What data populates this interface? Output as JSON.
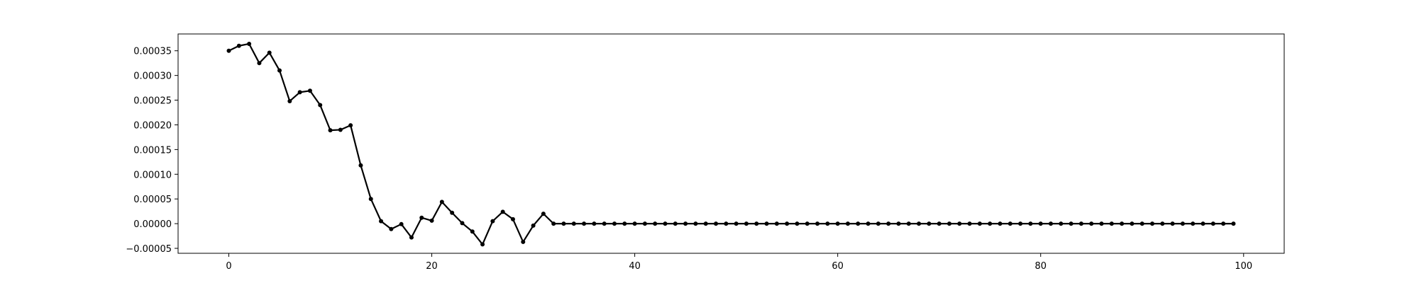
{
  "chart_data": {
    "type": "line",
    "title": "",
    "xlabel": "",
    "ylabel": "",
    "xlim": [
      -5,
      104
    ],
    "ylim": [
      -6e-05,
      0.000384
    ],
    "grid": false,
    "legend": "none",
    "colors": {
      "line": "#000000",
      "marker": "#000000",
      "axes": "#000000",
      "background": "#ffffff"
    },
    "x_ticks": [
      {
        "value": 0,
        "label": "0"
      },
      {
        "value": 20,
        "label": "20"
      },
      {
        "value": 40,
        "label": "40"
      },
      {
        "value": 60,
        "label": "60"
      },
      {
        "value": 80,
        "label": "80"
      },
      {
        "value": 100,
        "label": "100"
      }
    ],
    "y_ticks": [
      {
        "value": -5e-05,
        "label": "−0.00005"
      },
      {
        "value": 0.0,
        "label": "0.00000"
      },
      {
        "value": 5e-05,
        "label": "0.00005"
      },
      {
        "value": 0.0001,
        "label": "0.00010"
      },
      {
        "value": 0.00015,
        "label": "0.00015"
      },
      {
        "value": 0.0002,
        "label": "0.00020"
      },
      {
        "value": 0.00025,
        "label": "0.00025"
      },
      {
        "value": 0.0003,
        "label": "0.00030"
      },
      {
        "value": 0.00035,
        "label": "0.00035"
      }
    ],
    "series": [
      {
        "x": [
          0,
          1,
          2,
          3,
          4,
          5,
          6,
          7,
          8,
          9,
          10,
          11,
          12,
          13,
          14,
          15,
          16,
          17,
          18,
          19,
          20,
          21,
          22,
          23,
          24,
          25,
          26,
          27,
          28,
          29,
          30,
          31,
          32,
          33,
          34,
          35,
          36,
          37,
          38,
          39,
          40,
          41,
          42,
          43,
          44,
          45,
          46,
          47,
          48,
          49,
          50,
          51,
          52,
          53,
          54,
          55,
          56,
          57,
          58,
          59,
          60,
          61,
          62,
          63,
          64,
          65,
          66,
          67,
          68,
          69,
          70,
          71,
          72,
          73,
          74,
          75,
          76,
          77,
          78,
          79,
          80,
          81,
          82,
          83,
          84,
          85,
          86,
          87,
          88,
          89,
          90,
          91,
          92,
          93,
          94,
          95,
          96,
          97,
          98,
          99
        ],
        "values": [
          0.00035,
          0.00036,
          0.000364,
          0.000325,
          0.000346,
          0.00031,
          0.000248,
          0.000266,
          0.000269,
          0.00024,
          0.000189,
          0.00019,
          0.000199,
          0.000118,
          5e-05,
          5e-06,
          -1.1e-05,
          -1e-06,
          -2.8e-05,
          1.2e-05,
          6e-06,
          4.4e-05,
          2.2e-05,
          1e-06,
          -1.6e-05,
          -4.2e-05,
          5e-06,
          2.4e-05,
          9e-06,
          -3.7e-05,
          -4e-06,
          2e-05,
          0,
          0,
          0,
          0,
          0,
          0,
          0,
          0,
          0,
          0,
          0,
          0,
          0,
          0,
          0,
          0,
          0,
          0,
          0,
          0,
          0,
          0,
          0,
          0,
          0,
          0,
          0,
          0,
          0,
          0,
          0,
          0,
          0,
          0,
          0,
          0,
          0,
          0,
          0,
          0,
          0,
          0,
          0,
          0,
          0,
          0,
          0,
          0,
          0,
          0,
          0,
          0,
          0,
          0,
          0,
          0,
          0,
          0,
          0,
          0,
          0,
          0,
          0,
          0,
          0,
          0,
          0,
          0
        ]
      }
    ]
  }
}
